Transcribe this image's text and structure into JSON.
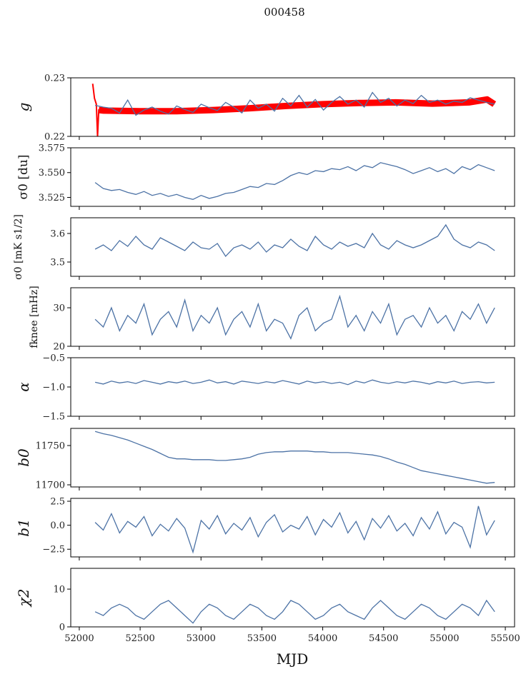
{
  "chart_data": {
    "type": "line",
    "title": "000458",
    "xlabel": "MJD",
    "xlim": [
      51930,
      55576
    ],
    "xticks": [
      52000,
      52500,
      53000,
      53500,
      54000,
      54500,
      55000,
      55500
    ],
    "x_start": 52130,
    "x_step": 67,
    "line_color": "#4c72a5",
    "fit_color": "#ff0000",
    "panels": [
      {
        "ylabel": "g",
        "ylim": [
          0.22,
          0.23
        ],
        "yticks": [
          0.22,
          0.23
        ],
        "ytick_labels": [
          "0.22",
          "0.23"
        ],
        "values": [
          0.2253,
          0.225,
          0.2248,
          0.224,
          0.2262,
          0.2236,
          0.2245,
          0.225,
          0.2243,
          0.2238,
          0.2252,
          0.2246,
          0.2241,
          0.2255,
          0.2249,
          0.2244,
          0.2258,
          0.225,
          0.224,
          0.2262,
          0.2248,
          0.2255,
          0.2243,
          0.2265,
          0.2252,
          0.227,
          0.225,
          0.2263,
          0.2245,
          0.2258,
          0.2268,
          0.2255,
          0.2262,
          0.225,
          0.2275,
          0.2258,
          0.2265,
          0.2252,
          0.2262,
          0.2256,
          0.227,
          0.2258,
          0.2262,
          0.2255,
          0.226,
          0.2258,
          0.2266,
          0.2262,
          0.2258,
          0.2255
        ],
        "fit": {
          "x": [
            52110,
            52125,
            52140,
            52150,
            52160,
            52200,
            52500,
            52800,
            53100,
            53400,
            53700,
            54000,
            54300,
            54600,
            54900,
            55200,
            55350,
            55410
          ],
          "y": [
            0.229,
            0.2265,
            0.2255,
            0.22,
            0.2245,
            0.2244,
            0.2243,
            0.2243,
            0.2245,
            0.2248,
            0.2252,
            0.2255,
            0.2257,
            0.2258,
            0.2256,
            0.2258,
            0.2263,
            0.2255
          ]
        }
      },
      {
        "ylabel": "σ0 [du]",
        "ylim": [
          3.516,
          3.575
        ],
        "yticks": [
          3.525,
          3.55,
          3.575
        ],
        "ytick_labels": [
          "3.525",
          "3.550",
          "3.575"
        ],
        "values": [
          3.54,
          3.534,
          3.532,
          3.533,
          3.53,
          3.528,
          3.531,
          3.527,
          3.529,
          3.526,
          3.528,
          3.525,
          3.523,
          3.527,
          3.524,
          3.526,
          3.529,
          3.53,
          3.533,
          3.536,
          3.535,
          3.539,
          3.538,
          3.542,
          3.547,
          3.55,
          3.548,
          3.552,
          3.551,
          3.554,
          3.553,
          3.556,
          3.552,
          3.557,
          3.555,
          3.56,
          3.558,
          3.556,
          3.553,
          3.549,
          3.552,
          3.555,
          3.551,
          3.554,
          3.549,
          3.556,
          3.553,
          3.558,
          3.555,
          3.552
        ]
      },
      {
        "ylabel": "σ0 [mK s1/2]",
        "ylim": [
          3.45,
          3.655
        ],
        "yticks": [
          3.5,
          3.6
        ],
        "ytick_labels": [
          "3.5",
          "3.6"
        ],
        "values": [
          3.545,
          3.56,
          3.54,
          3.575,
          3.555,
          3.59,
          3.56,
          3.545,
          3.585,
          3.57,
          3.555,
          3.54,
          3.57,
          3.55,
          3.545,
          3.565,
          3.52,
          3.55,
          3.56,
          3.545,
          3.57,
          3.535,
          3.56,
          3.55,
          3.58,
          3.555,
          3.54,
          3.59,
          3.56,
          3.545,
          3.57,
          3.555,
          3.565,
          3.55,
          3.6,
          3.56,
          3.545,
          3.575,
          3.56,
          3.55,
          3.56,
          3.575,
          3.59,
          3.63,
          3.58,
          3.56,
          3.55,
          3.57,
          3.56,
          3.54
        ]
      },
      {
        "ylabel": "fknee [mHz]",
        "ylim": [
          20,
          35.2
        ],
        "yticks": [
          20,
          30
        ],
        "ytick_labels": [
          "20",
          "30"
        ],
        "values": [
          27,
          25,
          30,
          24,
          28,
          26,
          31,
          23,
          27,
          29,
          25,
          32,
          24,
          28,
          26,
          30,
          23,
          27,
          29,
          25,
          31,
          24,
          27,
          26,
          22,
          28,
          30,
          24,
          26,
          27,
          33,
          25,
          28,
          24,
          29,
          26,
          31,
          23,
          27,
          28,
          25,
          30,
          26,
          28,
          24,
          29,
          27,
          31,
          26,
          30
        ]
      },
      {
        "ylabel": "α",
        "ylim": [
          -1.5,
          -0.5
        ],
        "yticks": [
          -1.5,
          -1.0,
          -0.5
        ],
        "ytick_labels": [
          "−1.5",
          "−1.0",
          "−0.5"
        ],
        "values": [
          -0.92,
          -0.95,
          -0.9,
          -0.93,
          -0.91,
          -0.94,
          -0.89,
          -0.92,
          -0.95,
          -0.91,
          -0.93,
          -0.9,
          -0.94,
          -0.92,
          -0.88,
          -0.93,
          -0.91,
          -0.95,
          -0.9,
          -0.92,
          -0.94,
          -0.91,
          -0.93,
          -0.89,
          -0.92,
          -0.95,
          -0.9,
          -0.93,
          -0.91,
          -0.94,
          -0.92,
          -0.96,
          -0.9,
          -0.93,
          -0.88,
          -0.92,
          -0.94,
          -0.91,
          -0.93,
          -0.9,
          -0.92,
          -0.95,
          -0.91,
          -0.93,
          -0.9,
          -0.94,
          -0.92,
          -0.91,
          -0.93,
          -0.92
        ]
      },
      {
        "ylabel": "b0",
        "ylim": [
          11697.3,
          11771.8
        ],
        "yticks": [
          11700,
          11750
        ],
        "ytick_labels": [
          "11700",
          "11750"
        ],
        "values": [
          11768,
          11765,
          11763,
          11760,
          11757,
          11753,
          11749,
          11745,
          11740,
          11735,
          11733,
          11733,
          11732,
          11732,
          11732,
          11731,
          11731,
          11732,
          11733,
          11735,
          11739,
          11741,
          11742,
          11742,
          11743,
          11743,
          11743,
          11742,
          11742,
          11741,
          11741,
          11741,
          11740,
          11739,
          11738,
          11736,
          11733,
          11729,
          11726,
          11722,
          11718,
          11716,
          11714,
          11712,
          11710,
          11708,
          11706,
          11704,
          11702,
          11703
        ]
      },
      {
        "ylabel": "b1",
        "ylim": [
          -3.3,
          2.8
        ],
        "yticks": [
          -2.5,
          0,
          2.5
        ],
        "ytick_labels": [
          "−2.5",
          "0.0",
          "2.5"
        ],
        "values": [
          0.3,
          -0.5,
          1.2,
          -0.8,
          0.4,
          -0.2,
          0.9,
          -1.1,
          0.1,
          -0.6,
          0.7,
          -0.3,
          -2.8,
          0.5,
          -0.4,
          1.0,
          -0.9,
          0.2,
          -0.5,
          0.8,
          -1.2,
          0.3,
          1.1,
          -0.7,
          0.0,
          -0.4,
          0.9,
          -1.0,
          0.6,
          -0.2,
          1.3,
          -0.8,
          0.4,
          -1.5,
          0.7,
          -0.3,
          1.0,
          -0.6,
          0.2,
          -1.1,
          0.8,
          -0.4,
          1.4,
          -0.9,
          0.3,
          -0.2,
          -2.3,
          2.0,
          -1.0,
          0.5
        ]
      },
      {
        "ylabel": "χ2",
        "ylim": [
          0,
          15.5
        ],
        "yticks": [
          0,
          10
        ],
        "ytick_labels": [
          "0",
          "10"
        ],
        "values": [
          4,
          3,
          5,
          6,
          5,
          3,
          2,
          4,
          6,
          7,
          5,
          3,
          1,
          4,
          6,
          5,
          3,
          2,
          4,
          6,
          5,
          3,
          2,
          4,
          7,
          6,
          4,
          2,
          3,
          5,
          6,
          4,
          3,
          2,
          5,
          7,
          5,
          3,
          2,
          4,
          6,
          5,
          3,
          2,
          4,
          6,
          5,
          3,
          7,
          4
        ]
      }
    ]
  }
}
